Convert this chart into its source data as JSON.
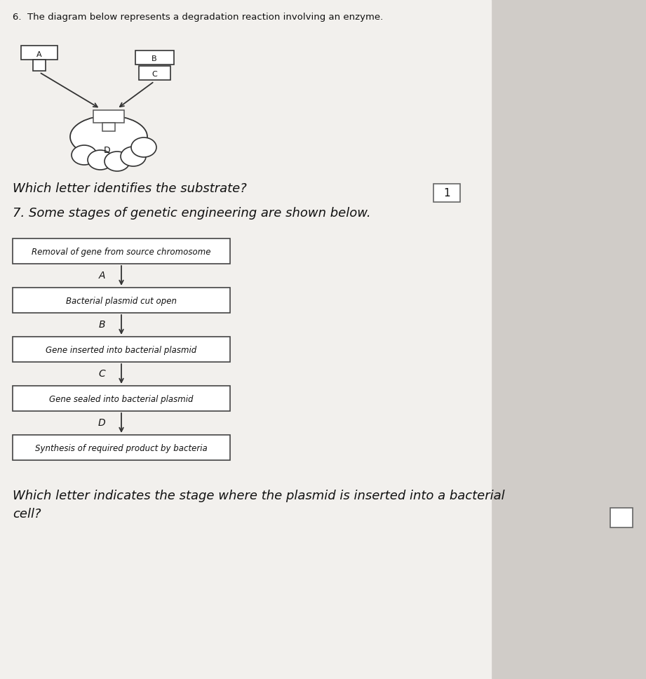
{
  "background_color": "#d0ccc8",
  "paper_color": "#f2f0ed",
  "title_q6": "6.  The diagram below represents a degradation reaction involving an enzyme.",
  "title_q7": "7. Some stages of genetic engineering are shown below.",
  "question_q6": "Which letter identifies the substrate?",
  "question_q7_line1": "Which letter indicates the stage where the plasmid is inserted into a bacterial",
  "question_q7_line2": "cell?",
  "q7_box1": "Removal of gene from source chromosome",
  "q7_box2": "Bacterial plasmid cut open",
  "q7_box3": "Gene inserted into bacterial plasmid",
  "q7_box4": "Gene sealed into bacterial plasmid",
  "q7_box5": "Synthesis of required product by bacteria",
  "arrow_labels": [
    "A",
    "B",
    "C",
    "D"
  ],
  "box_color": "#ffffff",
  "box_edge_color": "#444444",
  "text_color": "#111111",
  "mark_box_label": "1"
}
